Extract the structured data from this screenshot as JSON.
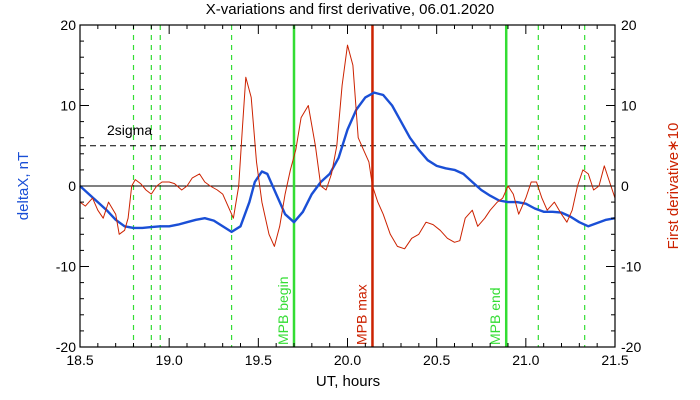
{
  "chart_data": {
    "type": "line",
    "title": "X-variations and first derivative, 06.01.2020",
    "xlabel": "UT, hours",
    "ylabel_left": "deltaX, nT",
    "ylabel_right": "First derivative∗10",
    "xlim": [
      18.5,
      21.5
    ],
    "ylim_left": [
      -20,
      20
    ],
    "ylim_right": [
      -20,
      20
    ],
    "x_ticks": [
      18.5,
      19.0,
      19.5,
      20.0,
      20.5,
      21.0,
      21.5
    ],
    "x_tick_labels": [
      "18.5",
      "19.0",
      "19.5",
      "20.0",
      "20.5",
      "21.0",
      "21.5"
    ],
    "y_ticks": [
      -20,
      -10,
      0,
      10,
      20
    ],
    "y_tick_labels": [
      "-20",
      "-10",
      "0",
      "10",
      "20"
    ],
    "colors": {
      "deltaX": "#1a4fd6",
      "derivative": "#cc2200",
      "mpb_boundary": "#33dd33",
      "mpb_max": "#cc2200",
      "axis": "#000000",
      "ylabel_left": "#1a4fd6",
      "ylabel_right": "#cc2200"
    },
    "threshold": {
      "label": "2sigma",
      "value": 5.0,
      "style": "dashed"
    },
    "zero_line": 0,
    "dashed_vlines": [
      18.8,
      18.9,
      18.95,
      19.35,
      21.07,
      21.33
    ],
    "markers": [
      {
        "label": "MPB begin",
        "x": 19.7,
        "color": "#33dd33"
      },
      {
        "label": "MPB max",
        "x": 20.14,
        "color": "#cc2200"
      },
      {
        "label": "MPB end",
        "x": 20.89,
        "color": "#33dd33"
      }
    ],
    "series": [
      {
        "name": "deltaX",
        "axis": "left",
        "x": [
          18.5,
          18.55,
          18.6,
          18.65,
          18.7,
          18.75,
          18.8,
          18.85,
          18.9,
          18.95,
          19.0,
          19.05,
          19.1,
          19.15,
          19.2,
          19.25,
          19.3,
          19.35,
          19.4,
          19.45,
          19.48,
          19.52,
          19.55,
          19.6,
          19.65,
          19.7,
          19.75,
          19.8,
          19.85,
          19.9,
          19.95,
          20.0,
          20.05,
          20.1,
          20.15,
          20.2,
          20.25,
          20.3,
          20.35,
          20.4,
          20.45,
          20.5,
          20.55,
          20.6,
          20.65,
          20.7,
          20.75,
          20.8,
          20.85,
          20.9,
          20.95,
          21.0,
          21.05,
          21.1,
          21.15,
          21.2,
          21.25,
          21.3,
          21.35,
          21.4,
          21.45,
          21.5
        ],
        "y": [
          0.0,
          -1.0,
          -2.0,
          -3.0,
          -4.2,
          -5.0,
          -5.2,
          -5.2,
          -5.1,
          -5.0,
          -5.0,
          -4.8,
          -4.5,
          -4.2,
          -4.0,
          -4.3,
          -5.0,
          -5.7,
          -5.0,
          -2.0,
          0.5,
          1.8,
          1.5,
          -1.0,
          -3.5,
          -4.5,
          -3.2,
          -1.0,
          0.5,
          1.5,
          3.5,
          7.0,
          9.5,
          11.0,
          11.6,
          11.3,
          10.0,
          8.0,
          6.0,
          4.5,
          3.2,
          2.5,
          2.2,
          2.0,
          1.5,
          0.5,
          -0.5,
          -1.2,
          -1.8,
          -2.0,
          -2.0,
          -2.2,
          -2.8,
          -3.2,
          -3.2,
          -3.3,
          -3.8,
          -4.5,
          -5.0,
          -4.6,
          -4.2,
          -4.0
        ]
      },
      {
        "name": "First derivative∗10",
        "axis": "right",
        "x": [
          18.5,
          18.53,
          18.57,
          18.6,
          18.63,
          18.66,
          18.7,
          18.72,
          18.75,
          18.77,
          18.79,
          18.81,
          18.84,
          18.87,
          18.9,
          18.93,
          18.96,
          19.0,
          19.03,
          19.07,
          19.1,
          19.13,
          19.17,
          19.2,
          19.23,
          19.27,
          19.3,
          19.33,
          19.36,
          19.39,
          19.41,
          19.43,
          19.46,
          19.49,
          19.52,
          19.56,
          19.59,
          19.62,
          19.65,
          19.68,
          19.71,
          19.74,
          19.78,
          19.82,
          19.85,
          19.88,
          19.91,
          19.94,
          19.97,
          20.0,
          20.03,
          20.06,
          20.09,
          20.12,
          20.14,
          20.17,
          20.2,
          20.24,
          20.28,
          20.32,
          20.36,
          20.4,
          20.44,
          20.48,
          20.52,
          20.56,
          20.6,
          20.63,
          20.66,
          20.7,
          20.73,
          20.77,
          20.8,
          20.84,
          20.87,
          20.9,
          20.93,
          20.96,
          21.0,
          21.03,
          21.06,
          21.09,
          21.12,
          21.16,
          21.2,
          21.23,
          21.26,
          21.29,
          21.32,
          21.35,
          21.38,
          21.41,
          21.44,
          21.47,
          21.5
        ],
        "y": [
          -2.0,
          -2.5,
          -1.5,
          -3.0,
          -4.0,
          -2.0,
          -3.5,
          -6.0,
          -5.5,
          -4.0,
          0.0,
          0.8,
          0.3,
          -0.5,
          -1.0,
          0.0,
          0.5,
          0.5,
          0.3,
          -0.5,
          0.0,
          1.0,
          1.5,
          0.5,
          0.0,
          -0.5,
          -1.0,
          -2.5,
          -4.0,
          0.0,
          7.0,
          13.5,
          11.0,
          3.0,
          -2.0,
          -6.0,
          -7.5,
          -5.0,
          -1.0,
          2.0,
          4.5,
          8.5,
          10.0,
          5.0,
          0.0,
          -0.5,
          1.5,
          5.0,
          12.5,
          17.5,
          15.0,
          6.0,
          4.5,
          3.0,
          0.0,
          -2.0,
          -3.5,
          -6.0,
          -7.5,
          -7.8,
          -6.5,
          -6.0,
          -4.5,
          -4.8,
          -5.5,
          -6.5,
          -7.0,
          -6.8,
          -4.0,
          -3.0,
          -5.0,
          -4.0,
          -3.0,
          -2.0,
          -1.5,
          0.0,
          -1.0,
          -3.5,
          -1.5,
          0.5,
          0.5,
          -1.5,
          -3.0,
          -2.0,
          -3.5,
          -4.5,
          -3.0,
          0.0,
          2.0,
          1.5,
          -0.5,
          0.0,
          2.5,
          0.5,
          -1.5
        ]
      }
    ]
  }
}
